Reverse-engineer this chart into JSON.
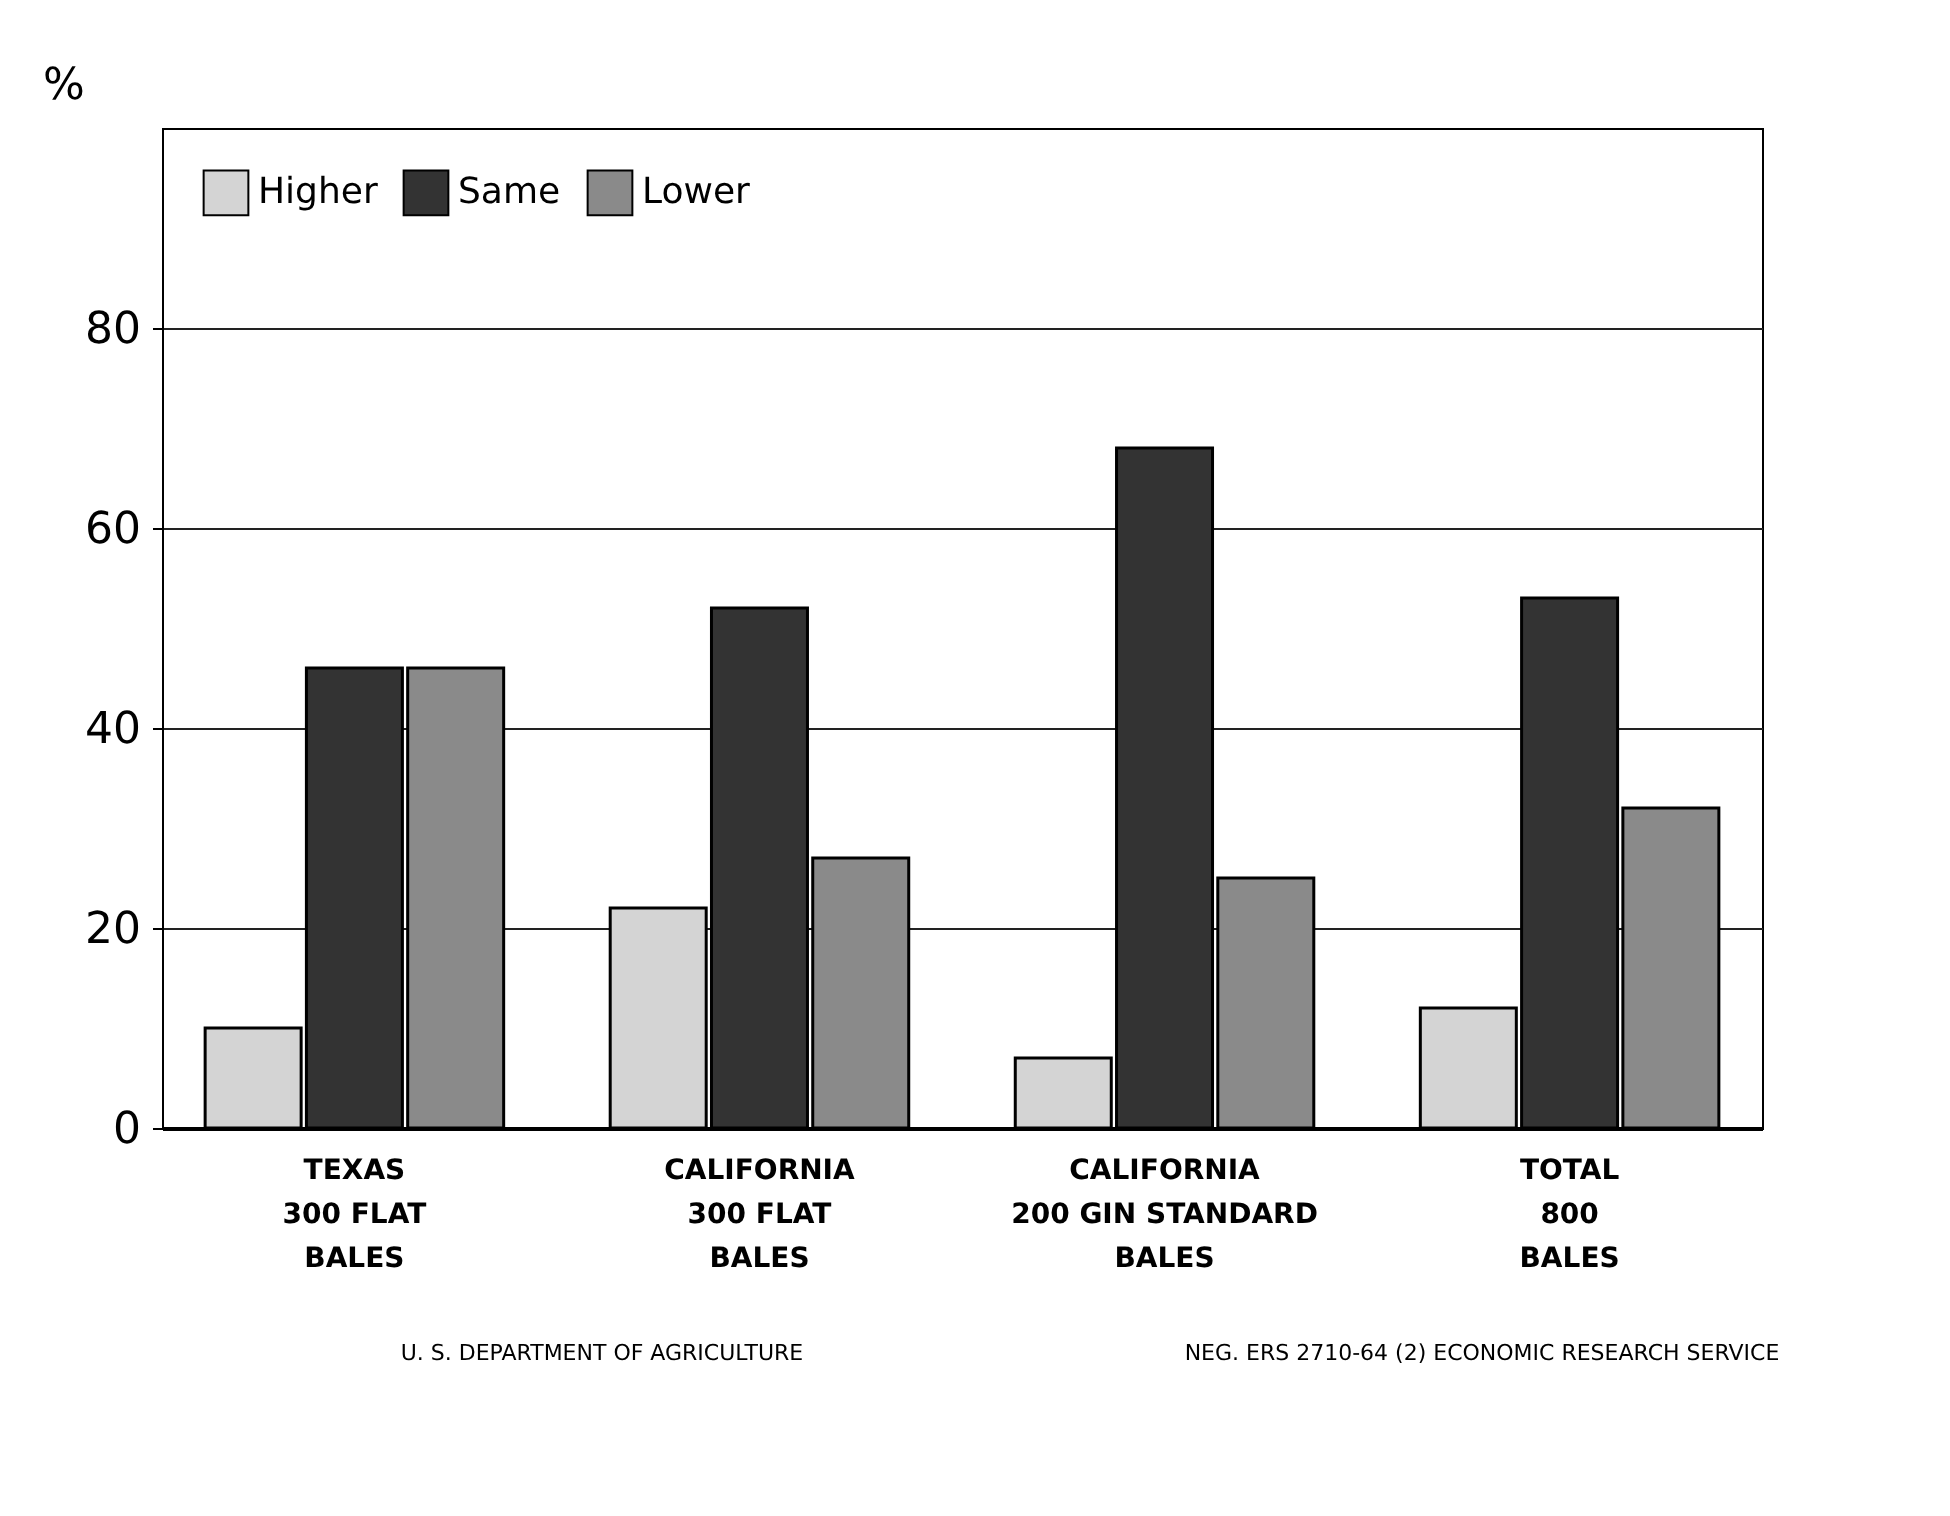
{
  "chart_data": {
    "type": "bar",
    "ylabel": "%",
    "categories": [
      "TEXAS\n300 FLAT\nBALES",
      "CALIFORNIA\n300 FLAT\nBALES",
      "CALIFORNIA\n200 GIN STANDARD\nBALES",
      "TOTAL\n800\nBALES"
    ],
    "series": [
      {
        "name": "Higher",
        "color": "#d4d4d4",
        "values": [
          10,
          22,
          7,
          12
        ]
      },
      {
        "name": "Same",
        "color": "#333333",
        "values": [
          46,
          52,
          68,
          53
        ]
      },
      {
        "name": "Lower",
        "color": "#8a8a8a",
        "values": [
          46,
          27,
          25,
          32
        ]
      }
    ],
    "ylim": [
      0,
      100
    ],
    "yticks": [
      0,
      20,
      40,
      60,
      80
    ],
    "grid": "y",
    "legend": "top left",
    "annotations": [
      "U. S. DEPARTMENT OF AGRICULTURE",
      "NEG. ERS 2710-64 (2)   ECONOMIC RESEARCH SERVICE"
    ]
  }
}
